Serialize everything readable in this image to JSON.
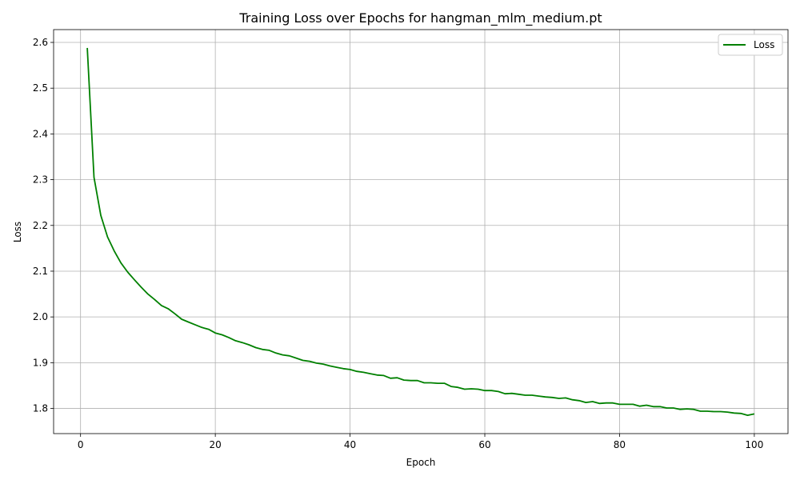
{
  "chart_data": {
    "type": "line",
    "title": "Training Loss over Epochs for hangman_mlm_medium.pt",
    "xlabel": "Epoch",
    "ylabel": "Loss",
    "xlim": [
      -4,
      105
    ],
    "ylim": [
      1.745,
      2.628
    ],
    "xticks": [
      0,
      20,
      40,
      60,
      80,
      100
    ],
    "yticks": [
      1.8,
      1.9,
      2.0,
      2.1,
      2.2,
      2.3,
      2.4,
      2.5,
      2.6
    ],
    "grid": true,
    "legend_position": "top-right",
    "colors": {
      "line": "#008000",
      "grid": "#b0b0b0",
      "axes": "#000000"
    },
    "series": [
      {
        "name": "Loss",
        "x": [
          1,
          2,
          3,
          4,
          5,
          6,
          7,
          8,
          9,
          10,
          11,
          12,
          13,
          14,
          15,
          16,
          17,
          18,
          19,
          20,
          21,
          22,
          23,
          24,
          25,
          26,
          27,
          28,
          29,
          30,
          31,
          32,
          33,
          34,
          35,
          36,
          37,
          38,
          39,
          40,
          41,
          42,
          43,
          44,
          45,
          46,
          47,
          48,
          49,
          50,
          51,
          52,
          53,
          54,
          55,
          56,
          57,
          58,
          59,
          60,
          61,
          62,
          63,
          64,
          65,
          66,
          67,
          68,
          69,
          70,
          71,
          72,
          73,
          74,
          75,
          76,
          77,
          78,
          79,
          80,
          81,
          82,
          83,
          84,
          85,
          86,
          87,
          88,
          89,
          90,
          91,
          92,
          93,
          94,
          95,
          96,
          97,
          98,
          99,
          100
        ],
        "y": [
          2.588,
          2.305,
          2.222,
          2.175,
          2.144,
          2.118,
          2.098,
          2.081,
          2.065,
          2.05,
          2.038,
          2.025,
          2.018,
          2.007,
          1.995,
          1.989,
          1.983,
          1.977,
          1.973,
          1.965,
          1.961,
          1.955,
          1.948,
          1.944,
          1.939,
          1.933,
          1.929,
          1.927,
          1.921,
          1.917,
          1.915,
          1.91,
          1.905,
          1.903,
          1.899,
          1.897,
          1.893,
          1.89,
          1.887,
          1.885,
          1.881,
          1.879,
          1.876,
          1.873,
          1.872,
          1.866,
          1.867,
          1.862,
          1.861,
          1.861,
          1.856,
          1.856,
          1.855,
          1.855,
          1.848,
          1.846,
          1.842,
          1.843,
          1.842,
          1.839,
          1.839,
          1.837,
          1.832,
          1.833,
          1.831,
          1.829,
          1.829,
          1.827,
          1.825,
          1.824,
          1.822,
          1.823,
          1.819,
          1.817,
          1.813,
          1.815,
          1.811,
          1.812,
          1.812,
          1.809,
          1.809,
          1.809,
          1.805,
          1.807,
          1.804,
          1.804,
          1.801,
          1.801,
          1.798,
          1.799,
          1.798,
          1.794,
          1.794,
          1.793,
          1.793,
          1.792,
          1.79,
          1.789,
          1.785,
          1.788
        ]
      }
    ]
  }
}
